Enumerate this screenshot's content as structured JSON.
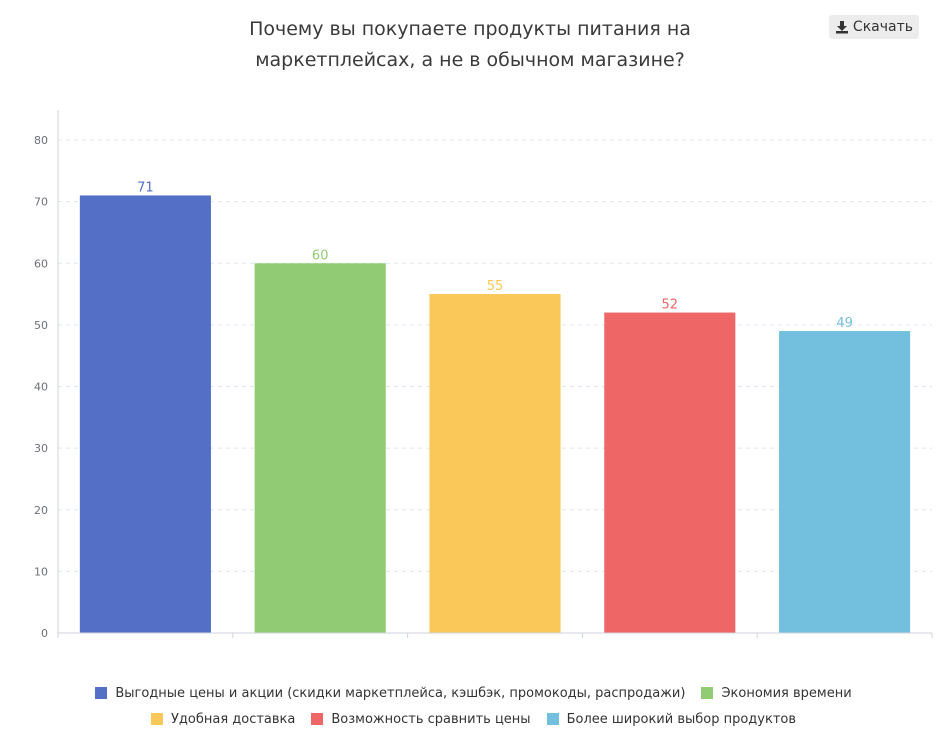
{
  "header": {
    "title_line1": "Почему вы покупаете продукты питания на",
    "title_line2": "маркетплейсах, а не в обычном магазине?",
    "download_label": "Скачать",
    "download_icon": "download-icon"
  },
  "chart_data": {
    "type": "bar",
    "categories": [
      "Выгодные цены и акции (скидки маркетплейса, кэшбэк, промокоды, распродажи)",
      "Экономия времени",
      "Удобная доставка",
      "Возможность сравнить цены",
      "Более широкий выбор продуктов"
    ],
    "values": [
      71,
      60,
      55,
      52,
      49
    ],
    "colors": [
      "#5470c6",
      "#91cc75",
      "#fac858",
      "#ee6666",
      "#73c0de"
    ],
    "ylim": [
      0,
      80
    ],
    "yticks": [
      0,
      10,
      20,
      30,
      40,
      50,
      60,
      70,
      80
    ],
    "grid": true,
    "legend_position": "bottom"
  },
  "legend": {
    "rows": [
      [
        {
          "label": "Выгодные цены и акции (скидки маркетплейса, кэшбэк, промокоды, распродажи)",
          "color": "#5470c6"
        },
        {
          "label": "Экономия времени",
          "color": "#91cc75"
        }
      ],
      [
        {
          "label": "Удобная доставка",
          "color": "#fac858"
        },
        {
          "label": "Возможность сравнить цены",
          "color": "#ee6666"
        },
        {
          "label": "Более широкий выбор продуктов",
          "color": "#73c0de"
        }
      ]
    ]
  }
}
